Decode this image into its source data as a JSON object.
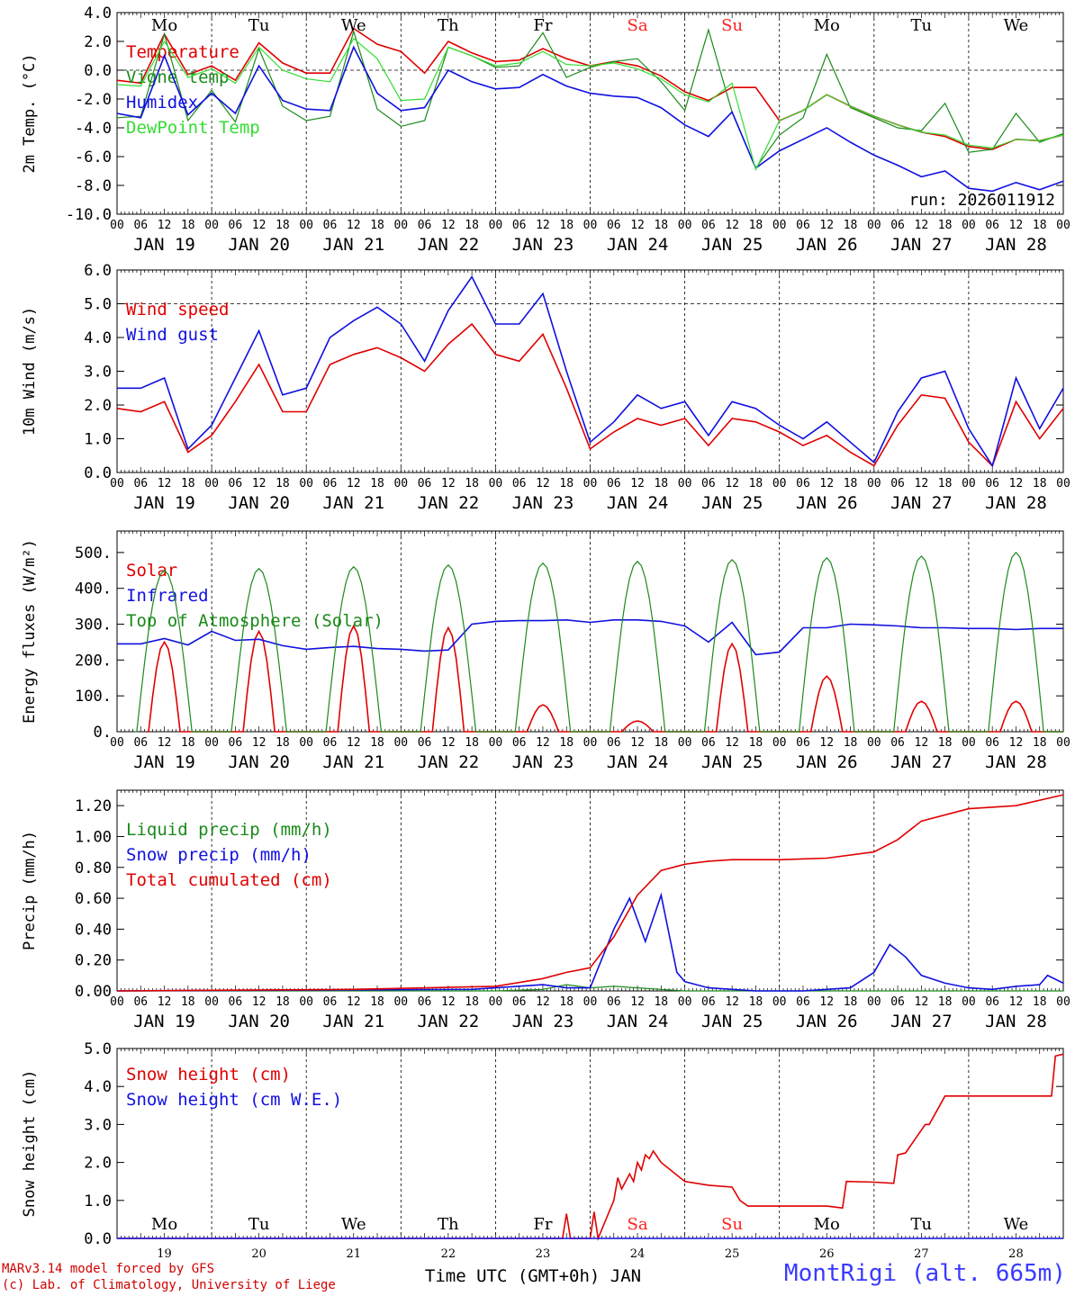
{
  "footer": {
    "model_line": "MARv3.14 model forced by GFS",
    "credit_line": "(c) Lab. of Climatology, University of Liege",
    "station": "MontRigi (alt. 665m)",
    "x_axis_title": "Time UTC (GMT+0h) JAN"
  },
  "time_axis": {
    "hour_ticks": [
      "00",
      "06",
      "12",
      "18"
    ],
    "date_labels": [
      "JAN 19",
      "JAN 20",
      "JAN 21",
      "JAN 22",
      "JAN 23",
      "JAN 24",
      "JAN 25",
      "JAN 26",
      "JAN 27",
      "JAN 28"
    ],
    "day_numbers": [
      "19",
      "20",
      "21",
      "22",
      "23",
      "24",
      "25",
      "26",
      "27",
      "28"
    ],
    "weekdays": [
      "Mo",
      "Tu",
      "We",
      "Th",
      "Fr",
      "Sa",
      "Su",
      "Mo",
      "Tu",
      "We"
    ],
    "weekend_color": "#ff2020",
    "weekday_color": "#000000"
  },
  "colors": {
    "red": "#e00000",
    "green": "#1a8a1a",
    "blue": "#1010e0",
    "lightgreen": "#33dd33"
  },
  "chart_data": [
    {
      "type": "line",
      "ylabel": "2m Temp. (°C)",
      "ylim": [
        -10,
        4
      ],
      "yticks": [
        "4.0",
        "2.0",
        "0.0",
        "-2.0",
        "-4.0",
        "-6.0",
        "-8.0",
        "-10.0"
      ],
      "run_label": "run: 2026011912",
      "x_hours": [
        0,
        6,
        12,
        18,
        24,
        30,
        36,
        42,
        48,
        54,
        60,
        66,
        72,
        78,
        84,
        90,
        96,
        102,
        108,
        114,
        120,
        126,
        132,
        138,
        144,
        150,
        156,
        162,
        168,
        174,
        180,
        186,
        192,
        198,
        204,
        210,
        216,
        222,
        228,
        234,
        240
      ],
      "series": [
        {
          "name": "Temperature",
          "color": "red",
          "values": [
            -0.7,
            -0.9,
            2.5,
            -0.3,
            0.3,
            -0.7,
            1.9,
            0.5,
            -0.2,
            -0.2,
            2.9,
            1.8,
            1.3,
            -0.2,
            2.0,
            1.2,
            0.6,
            0.7,
            1.5,
            0.8,
            0.3,
            0.6,
            0.3,
            -0.4,
            -1.5,
            -2.1,
            -1.2,
            -1.2,
            -3.5,
            -2.8,
            -1.7,
            -2.5,
            -3.2,
            -3.8,
            -4.3,
            -4.6,
            -5.3,
            -5.5,
            -4.8,
            -4.9,
            -4.5
          ]
        },
        {
          "name": "Vigne temp",
          "color": "green",
          "values": [
            -3.3,
            -3.2,
            2.5,
            -3.5,
            -1.4,
            -3.6,
            1.5,
            -2.5,
            -3.5,
            -3.2,
            2.7,
            -2.7,
            -3.9,
            -3.5,
            1.6,
            1.0,
            0.2,
            0.3,
            2.6,
            -0.5,
            0.2,
            0.6,
            0.8,
            -0.8,
            -2.8,
            2.8,
            -2.9,
            -6.8,
            -4.5,
            -3.3,
            1.1,
            -2.6,
            -3.3,
            -4.0,
            -4.2,
            -2.3,
            -5.7,
            -5.5,
            -3.0,
            -5.0,
            -4.4
          ]
        },
        {
          "name": "Humidex",
          "color": "blue",
          "values": [
            -3.0,
            -3.3,
            1.0,
            -3.1,
            -1.6,
            -3.0,
            0.3,
            -2.1,
            -2.7,
            -2.8,
            1.6,
            -1.6,
            -2.8,
            -2.6,
            0.0,
            -0.8,
            -1.3,
            -1.2,
            -0.3,
            -1.1,
            -1.6,
            -1.8,
            -1.9,
            -2.6,
            -3.8,
            -4.6,
            -2.9,
            -6.8,
            -5.6,
            -4.8,
            -4.0,
            -5.0,
            -5.9,
            -6.6,
            -7.4,
            -7.0,
            -8.2,
            -8.4,
            -7.8,
            -8.3,
            -7.7
          ]
        },
        {
          "name": "DewPoint Temp",
          "color": "lightgreen",
          "values": [
            -1.0,
            -1.1,
            2.0,
            -0.5,
            0.1,
            -0.9,
            1.6,
            0.0,
            -0.6,
            -0.8,
            2.2,
            0.8,
            -2.1,
            -2.0,
            1.6,
            1.0,
            0.3,
            0.5,
            1.3,
            0.4,
            0.3,
            0.5,
            0.1,
            -0.6,
            -1.7,
            -2.2,
            -0.9,
            -6.9,
            -3.5,
            -2.8,
            -1.7,
            -2.5,
            -3.2,
            -3.8,
            -4.3,
            -4.5,
            -5.2,
            -5.4,
            -4.8,
            -4.9,
            -4.5
          ]
        }
      ]
    },
    {
      "type": "line",
      "ylabel": "10m Wind (m/s)",
      "ylim": [
        0,
        6
      ],
      "yticks": [
        "6.0",
        "5.0",
        "4.0",
        "3.0",
        "2.0",
        "1.0",
        "0.0"
      ],
      "x_hours": [
        0,
        6,
        12,
        18,
        24,
        30,
        36,
        42,
        48,
        54,
        60,
        66,
        72,
        78,
        84,
        90,
        96,
        102,
        108,
        114,
        120,
        126,
        132,
        138,
        144,
        150,
        156,
        162,
        168,
        174,
        180,
        186,
        192,
        198,
        204,
        210,
        216,
        222,
        228,
        234,
        240
      ],
      "series": [
        {
          "name": "Wind speed",
          "color": "red",
          "values": [
            1.9,
            1.8,
            2.1,
            0.6,
            1.1,
            2.1,
            3.2,
            1.8,
            1.8,
            3.2,
            3.5,
            3.7,
            3.4,
            3.0,
            3.8,
            4.4,
            3.5,
            3.3,
            4.1,
            2.5,
            0.7,
            1.2,
            1.6,
            1.4,
            1.6,
            0.8,
            1.6,
            1.5,
            1.2,
            0.8,
            1.1,
            0.6,
            0.2,
            1.4,
            2.3,
            2.2,
            0.9,
            0.2,
            2.1,
            1.0,
            1.9
          ]
        },
        {
          "name": "Wind gust",
          "color": "blue",
          "values": [
            2.5,
            2.5,
            2.8,
            0.7,
            1.4,
            2.8,
            4.2,
            2.3,
            2.5,
            4.0,
            4.5,
            4.9,
            4.4,
            3.3,
            4.8,
            5.8,
            4.4,
            4.4,
            5.3,
            3.0,
            0.9,
            1.5,
            2.3,
            1.9,
            2.1,
            1.1,
            2.1,
            1.9,
            1.4,
            1.0,
            1.5,
            0.9,
            0.3,
            1.8,
            2.8,
            3.0,
            1.3,
            0.2,
            2.8,
            1.3,
            2.5
          ]
        }
      ]
    },
    {
      "type": "line",
      "ylabel": "Energy fluxes (W/m²)",
      "ylim": [
        0,
        560
      ],
      "yticks": [
        "500.",
        "400.",
        "300.",
        "200.",
        "100.",
        "0."
      ],
      "series": [
        {
          "name": "Solar",
          "color": "red",
          "peaks": [
            250,
            280,
            295,
            290,
            75,
            30,
            245,
            155,
            85,
            85
          ]
        },
        {
          "name": "Infrared",
          "color": "blue",
          "x_hours": [
            0,
            6,
            12,
            18,
            24,
            30,
            36,
            42,
            48,
            54,
            60,
            66,
            72,
            78,
            84,
            90,
            96,
            102,
            108,
            114,
            120,
            126,
            132,
            138,
            144,
            150,
            156,
            162,
            168,
            174,
            180,
            186,
            192,
            198,
            204,
            210,
            216,
            222,
            228,
            234,
            240
          ],
          "values": [
            245,
            245,
            260,
            242,
            280,
            255,
            258,
            240,
            230,
            235,
            238,
            232,
            230,
            225,
            228,
            300,
            308,
            310,
            310,
            312,
            305,
            312,
            312,
            308,
            295,
            250,
            305,
            215,
            222,
            290,
            290,
            300,
            298,
            295,
            290,
            290,
            288,
            288,
            285,
            288,
            288
          ]
        },
        {
          "name": "Top of Atmosphere (Solar)",
          "color": "green",
          "peaks": [
            450,
            455,
            460,
            465,
            470,
            475,
            480,
            485,
            490,
            500
          ]
        }
      ]
    },
    {
      "type": "line",
      "ylabel": "Precip (mm/h)",
      "ylim": [
        0,
        1.3
      ],
      "yticks": [
        "1.20",
        "1.00",
        "0.80",
        "0.60",
        "0.40",
        "0.20",
        "0.00"
      ],
      "series": [
        {
          "name": "Liquid precip (mm/h)",
          "color": "green",
          "x_hours": [
            0,
            96,
            108,
            114,
            120,
            126,
            132,
            138,
            144,
            240
          ],
          "values": [
            0,
            0,
            0.01,
            0.04,
            0.02,
            0.03,
            0.02,
            0.01,
            0,
            0
          ]
        },
        {
          "name": "Snow precip (mm/h)",
          "color": "blue",
          "x_hours": [
            0,
            90,
            96,
            108,
            114,
            120,
            126,
            130,
            134,
            138,
            142,
            144,
            150,
            156,
            162,
            174,
            180,
            186,
            192,
            196,
            200,
            204,
            210,
            216,
            222,
            228,
            234,
            236,
            240
          ],
          "values": [
            0,
            0.01,
            0.02,
            0.04,
            0.02,
            0.02,
            0.4,
            0.6,
            0.32,
            0.62,
            0.12,
            0.06,
            0.02,
            0.01,
            0,
            0,
            0.01,
            0.02,
            0.12,
            0.3,
            0.22,
            0.1,
            0.05,
            0.02,
            0.01,
            0.03,
            0.04,
            0.1,
            0.05
          ]
        },
        {
          "name": "Total cumulated (cm)",
          "color": "red",
          "x_hours": [
            0,
            60,
            96,
            108,
            114,
            120,
            126,
            132,
            138,
            144,
            150,
            156,
            168,
            180,
            192,
            198,
            204,
            216,
            228,
            240
          ],
          "values": [
            0,
            0.01,
            0.03,
            0.08,
            0.12,
            0.15,
            0.35,
            0.62,
            0.78,
            0.82,
            0.84,
            0.85,
            0.85,
            0.86,
            0.9,
            0.98,
            1.1,
            1.18,
            1.2,
            1.27
          ]
        }
      ]
    },
    {
      "type": "line",
      "ylabel": "Snow height (cm)",
      "ylim": [
        0,
        5
      ],
      "yticks": [
        "5.0",
        "4.0",
        "3.0",
        "2.0",
        "1.0",
        "0.0"
      ],
      "series": [
        {
          "name": "Snow height (cm)",
          "color": "red",
          "x_hours": [
            0,
            113,
            114,
            115,
            120,
            121,
            122,
            126,
            127,
            128,
            130,
            131,
            132,
            133,
            134,
            135,
            136,
            138,
            144,
            150,
            156,
            158,
            160,
            168,
            180,
            184,
            185,
            192,
            197,
            198,
            200,
            205,
            206,
            210,
            216,
            228,
            237,
            238,
            240
          ],
          "values": [
            0,
            0,
            0.65,
            0,
            0,
            0.7,
            0,
            1.0,
            1.6,
            1.3,
            1.7,
            1.5,
            2.0,
            1.8,
            2.2,
            2.1,
            2.3,
            2.0,
            1.5,
            1.4,
            1.35,
            1.0,
            0.85,
            0.85,
            0.85,
            0.8,
            1.5,
            1.48,
            1.45,
            2.2,
            2.25,
            3.0,
            3.0,
            3.75,
            3.75,
            3.75,
            3.75,
            4.8,
            4.85
          ]
        },
        {
          "name": "Snow height (cm W.E.)",
          "color": "blue",
          "x_hours": [
            0,
            240
          ],
          "values": [
            0,
            0
          ]
        }
      ]
    }
  ]
}
